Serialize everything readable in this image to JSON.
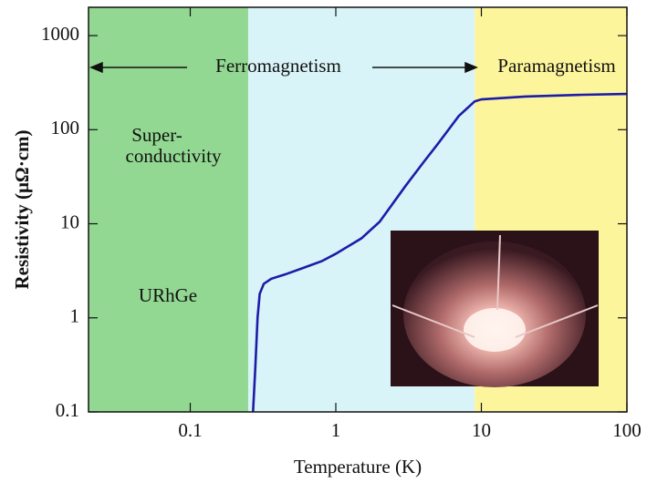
{
  "chart_data": {
    "type": "line",
    "x_label": "Temperature (K)",
    "y_label": "Resistivity (μΩ·cm)",
    "xscale": "log",
    "yscale": "log",
    "xlim": [
      0.02,
      100
    ],
    "ylim": [
      0.1,
      2000
    ],
    "xticks": [
      0.1,
      1,
      10,
      100
    ],
    "yticks": [
      0.1,
      1,
      10,
      100,
      1000
    ],
    "regions": [
      {
        "xlim": [
          0.02,
          0.25
        ],
        "color": "#92d892"
      },
      {
        "xlim": [
          0.25,
          9
        ],
        "color": "#d9f4f8"
      },
      {
        "xlim": [
          9,
          100
        ],
        "color": "#fdf59c"
      }
    ],
    "annotations": [
      "Ferromagnetism",
      "Paramagnetism",
      "Super-",
      "conductivity",
      "URhGe"
    ],
    "x": [
      0.27,
      0.28,
      0.29,
      0.3,
      0.32,
      0.36,
      0.45,
      0.6,
      0.8,
      1,
      1.5,
      2,
      3,
      4,
      5,
      7,
      9,
      10,
      20,
      50,
      100
    ],
    "series": [
      {
        "name": "URhGe",
        "color": "#1c1ca8",
        "values": [
          0.1,
          0.3,
          1,
          1.8,
          2.3,
          2.6,
          2.9,
          3.4,
          4,
          4.8,
          7,
          10.5,
          25,
          45,
          70,
          140,
          200,
          210,
          225,
          235,
          240
        ]
      }
    ]
  }
}
